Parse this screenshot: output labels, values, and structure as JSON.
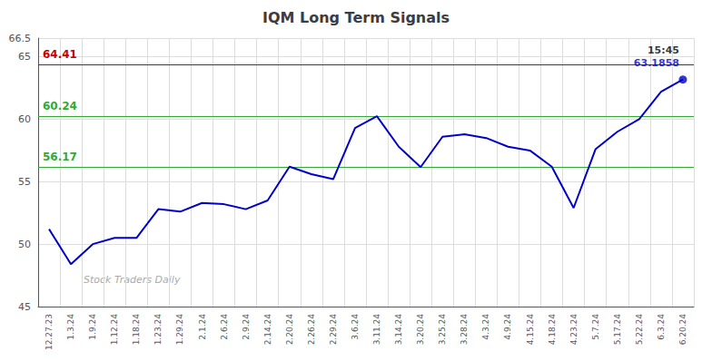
{
  "chart_data": {
    "type": "line",
    "title": "IQM Long Term Signals",
    "categories": [
      "12.27.23",
      "1.3.24",
      "1.9.24",
      "1.12.24",
      "1.18.24",
      "1.23.24",
      "1.29.24",
      "2.1.24",
      "2.6.24",
      "2.9.24",
      "2.14.24",
      "2.20.24",
      "2.26.24",
      "2.29.24",
      "3.6.24",
      "3.11.24",
      "3.14.24",
      "3.20.24",
      "3.25.24",
      "3.28.24",
      "4.3.24",
      "4.9.24",
      "4.15.24",
      "4.18.24",
      "4.23.24",
      "5.7.24",
      "5.17.24",
      "5.22.24",
      "6.3.24",
      "6.20.24"
    ],
    "values": [
      51.2,
      48.4,
      50.0,
      50.5,
      50.5,
      52.8,
      52.6,
      53.3,
      53.2,
      52.8,
      53.5,
      56.2,
      55.6,
      55.2,
      59.3,
      60.24,
      57.8,
      56.17,
      58.6,
      58.8,
      58.5,
      57.8,
      57.5,
      56.2,
      52.9,
      57.6,
      59.0,
      60.0,
      62.2,
      63.1858
    ],
    "color": "#0000cc",
    "ylim": [
      45,
      66.5
    ],
    "yticks": [
      45,
      50,
      55,
      60,
      65
    ],
    "grid": true,
    "hlines": [
      {
        "value": 64.41,
        "label": "64.41",
        "color": "#cc0000"
      },
      {
        "value": 60.24,
        "label": "60.24",
        "color": "#33aa33"
      },
      {
        "value": 56.17,
        "label": "56.17",
        "color": "#33aa33"
      }
    ],
    "annotations": [
      {
        "text": "15:45",
        "x": "6.20.24",
        "y": 63.1858,
        "color": "#000000"
      },
      {
        "text": "63.1858",
        "x": "6.20.24",
        "y": 63.1858,
        "color": "#0000cc"
      }
    ],
    "watermark": "Stock Traders Daily"
  }
}
